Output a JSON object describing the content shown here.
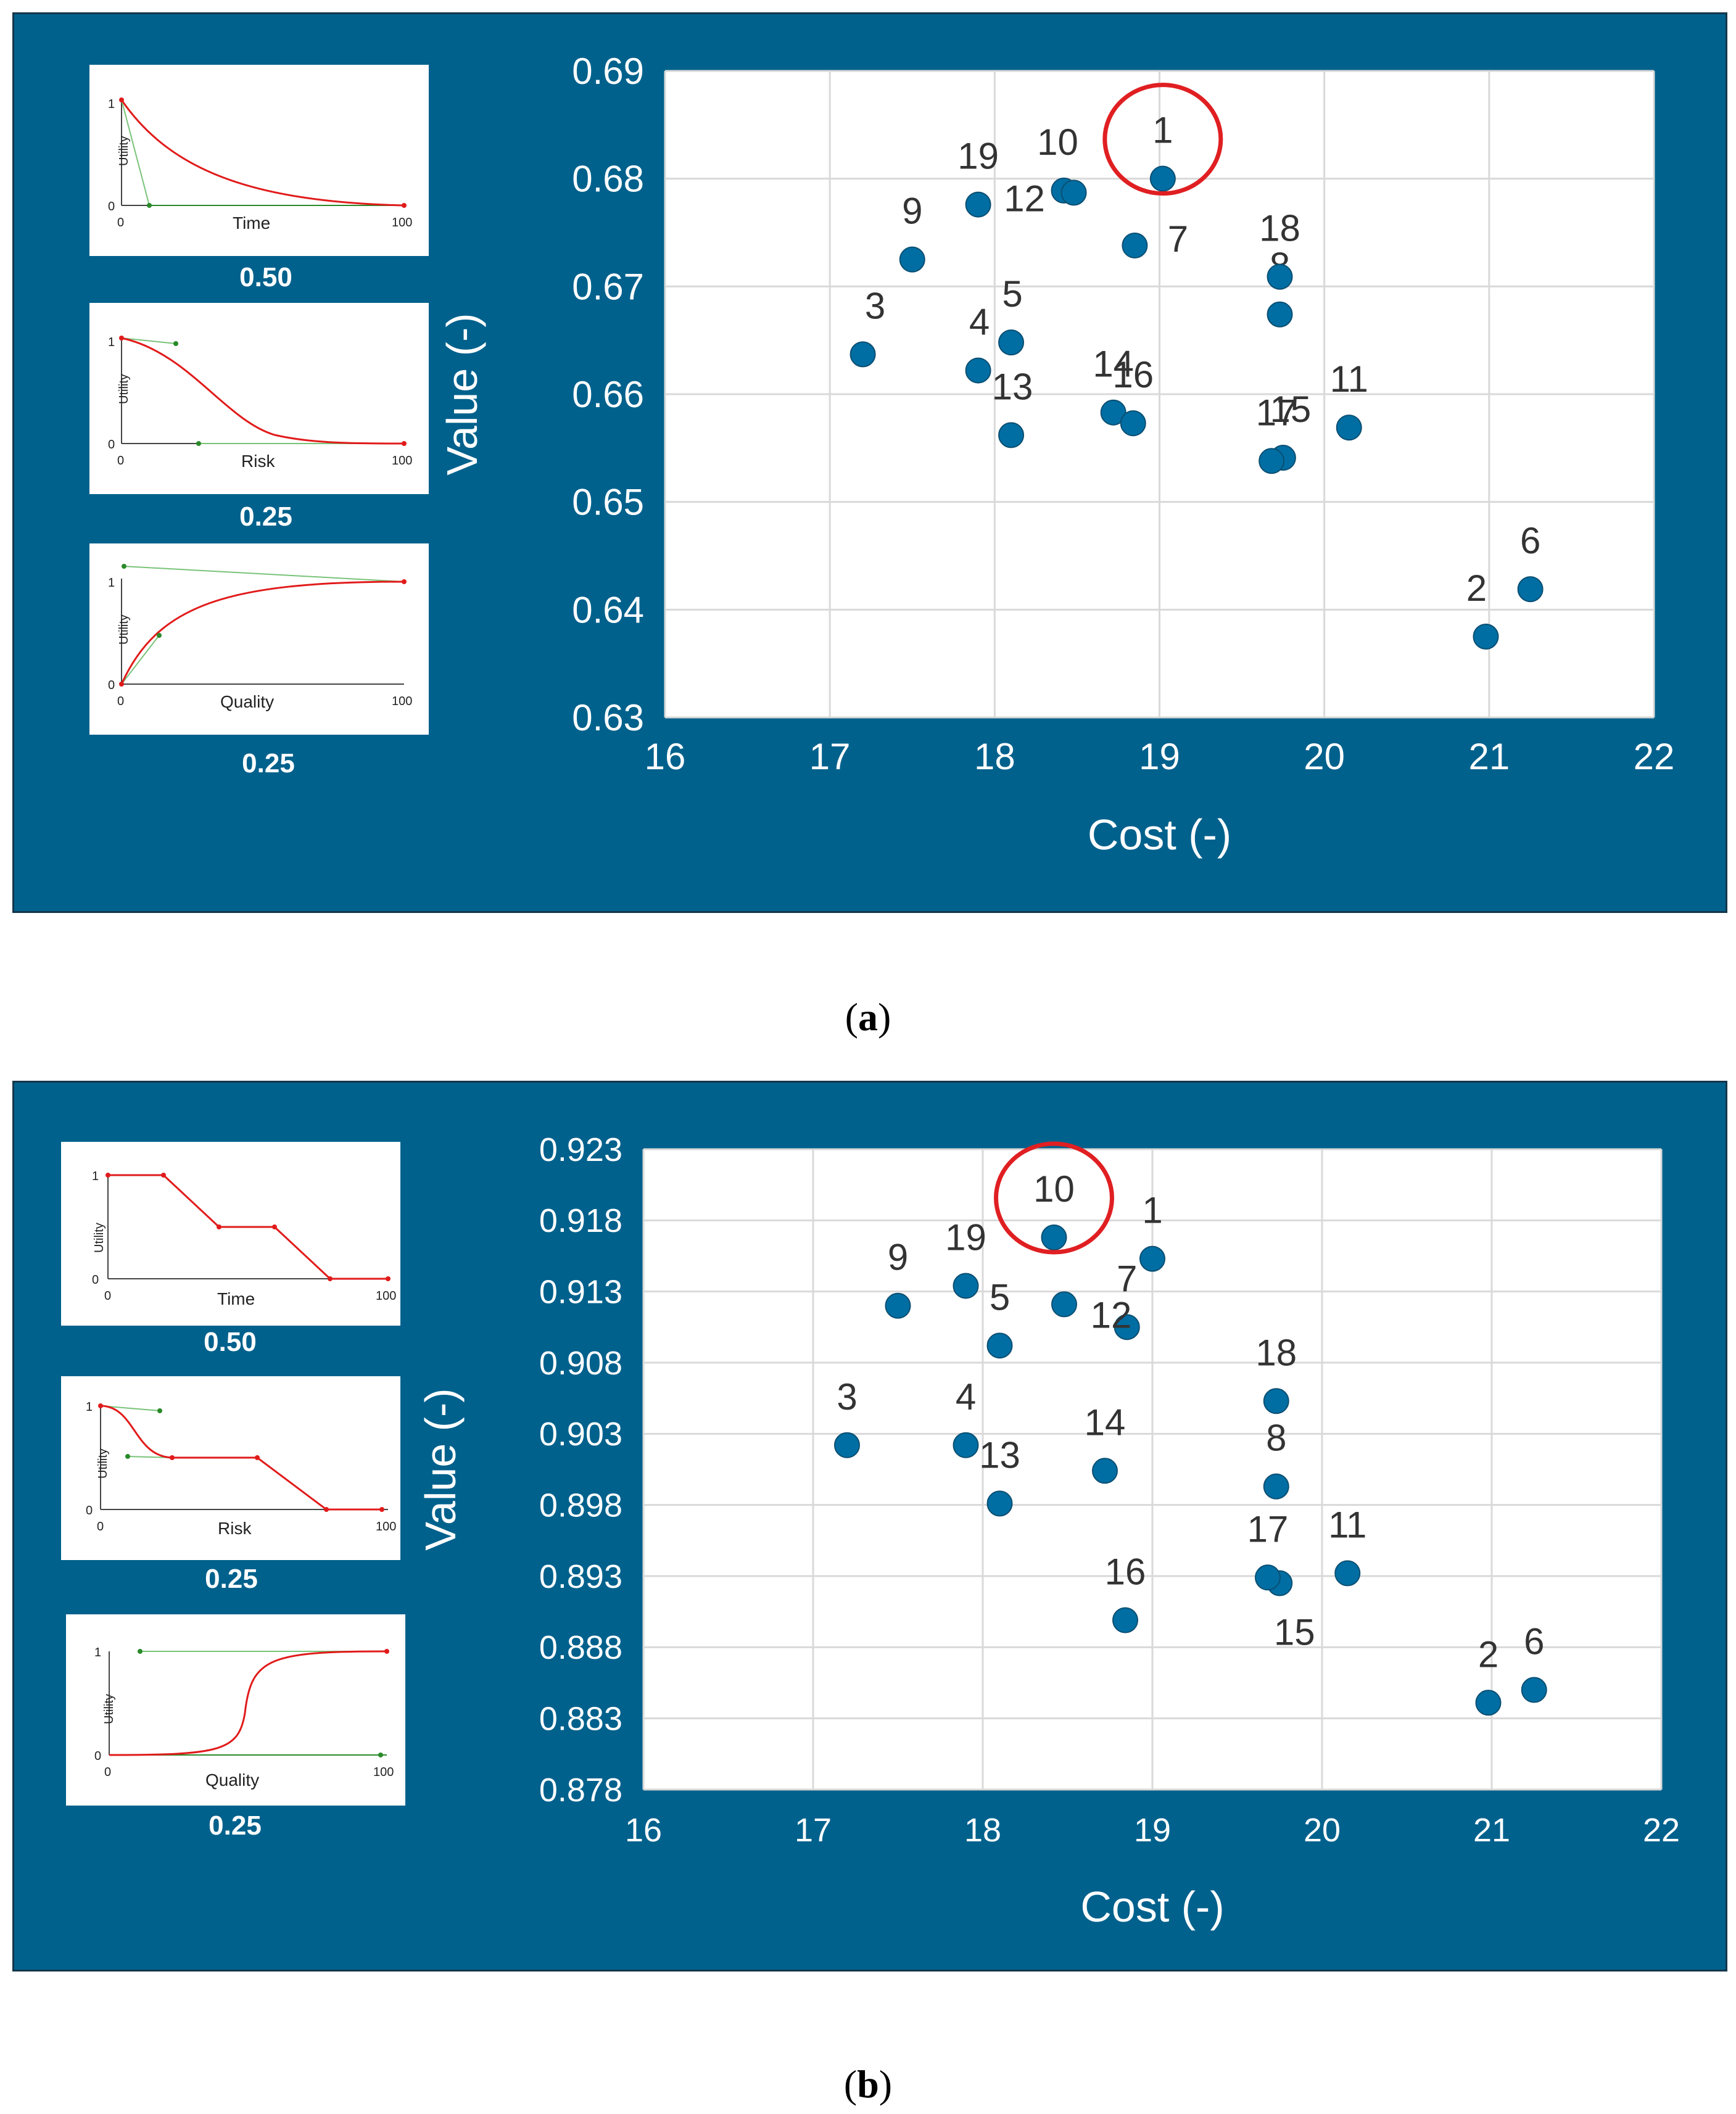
{
  "colors": {
    "panel": "#00618c",
    "marker": "#006ea3",
    "highlight": "#e01f22",
    "curve": "#e11b1b",
    "aux": "#79c379"
  },
  "panels": [
    {
      "caption_open": "(",
      "caption_letter": "a",
      "caption_close": ")",
      "utility_cards": [
        {
          "criterion": "Time",
          "weight": "0.50",
          "ylabel": "Utility",
          "y_ticks": [
            "1",
            "0"
          ],
          "x_ticks": [
            "0",
            "100"
          ]
        },
        {
          "criterion": "Risk",
          "weight": "0.25",
          "ylabel": "Utility",
          "y_ticks": [
            "1",
            "0"
          ],
          "x_ticks": [
            "0",
            "100"
          ]
        },
        {
          "criterion": "Quality",
          "weight": "0.25",
          "ylabel": "Utility",
          "y_ticks": [
            "1",
            "0"
          ],
          "x_ticks": [
            "0",
            "100"
          ]
        }
      ]
    },
    {
      "caption_open": "(",
      "caption_letter": "b",
      "caption_close": ")",
      "utility_cards": [
        {
          "criterion": "Time",
          "weight": "0.50",
          "ylabel": "Utility",
          "y_ticks": [
            "1",
            "0"
          ],
          "x_ticks": [
            "0",
            "100"
          ]
        },
        {
          "criterion": "Risk",
          "weight": "0.25",
          "ylabel": "Utility",
          "y_ticks": [
            "1",
            "0"
          ],
          "x_ticks": [
            "0",
            "100"
          ]
        },
        {
          "criterion": "Quality",
          "weight": "0.25",
          "ylabel": "Utility",
          "y_ticks": [
            "1",
            "0"
          ],
          "x_ticks": [
            "0",
            "100"
          ]
        }
      ]
    }
  ],
  "chart_data": [
    {
      "type": "scatter",
      "title": "",
      "xlabel": "Cost (-)",
      "ylabel": "Value (-)",
      "xlim": [
        16,
        22
      ],
      "ylim": [
        0.63,
        0.69
      ],
      "x_ticks": [
        "16",
        "17",
        "18",
        "19",
        "20",
        "21",
        "22"
      ],
      "y_ticks": [
        "0.63",
        "0.64",
        "0.65",
        "0.66",
        "0.67",
        "0.68",
        "0.69"
      ],
      "grid": true,
      "highlighted": "1",
      "points": [
        {
          "label": "1",
          "x": 19.02,
          "y": 0.68
        },
        {
          "label": "2",
          "x": 20.98,
          "y": 0.6375
        },
        {
          "label": "3",
          "x": 17.2,
          "y": 0.6637
        },
        {
          "label": "4",
          "x": 17.9,
          "y": 0.6622
        },
        {
          "label": "5",
          "x": 18.1,
          "y": 0.6648
        },
        {
          "label": "6",
          "x": 21.25,
          "y": 0.6419
        },
        {
          "label": "7",
          "x": 18.85,
          "y": 0.6738
        },
        {
          "label": "8",
          "x": 19.73,
          "y": 0.6674
        },
        {
          "label": "9",
          "x": 17.5,
          "y": 0.6725
        },
        {
          "label": "10",
          "x": 18.42,
          "y": 0.6789
        },
        {
          "label": "11",
          "x": 20.15,
          "y": 0.6569
        },
        {
          "label": "12",
          "x": 18.48,
          "y": 0.6787
        },
        {
          "label": "13",
          "x": 18.1,
          "y": 0.6562
        },
        {
          "label": "14",
          "x": 18.72,
          "y": 0.6583
        },
        {
          "label": "15",
          "x": 19.75,
          "y": 0.6541
        },
        {
          "label": "16",
          "x": 18.84,
          "y": 0.6573
        },
        {
          "label": "17",
          "x": 19.68,
          "y": 0.6538
        },
        {
          "label": "18",
          "x": 19.73,
          "y": 0.6709
        },
        {
          "label": "19",
          "x": 17.9,
          "y": 0.6776
        }
      ]
    },
    {
      "type": "scatter",
      "title": "",
      "xlabel": "Cost (-)",
      "ylabel": "Value (-)",
      "xlim": [
        16,
        22
      ],
      "ylim": [
        0.878,
        0.923
      ],
      "x_ticks": [
        "16",
        "17",
        "18",
        "19",
        "20",
        "21",
        "22"
      ],
      "y_ticks": [
        "0.878",
        "0.883",
        "0.888",
        "0.893",
        "0.898",
        "0.903",
        "0.908",
        "0.913",
        "0.918",
        "0.923"
      ],
      "grid": true,
      "highlighted": "10",
      "points": [
        {
          "label": "1",
          "x": 19.0,
          "y": 0.9153
        },
        {
          "label": "2",
          "x": 20.98,
          "y": 0.8841
        },
        {
          "label": "3",
          "x": 17.2,
          "y": 0.9022
        },
        {
          "label": "4",
          "x": 17.9,
          "y": 0.9022
        },
        {
          "label": "5",
          "x": 18.1,
          "y": 0.9092
        },
        {
          "label": "6",
          "x": 21.25,
          "y": 0.885
        },
        {
          "label": "7",
          "x": 18.85,
          "y": 0.9105
        },
        {
          "label": "8",
          "x": 19.73,
          "y": 0.8993
        },
        {
          "label": "9",
          "x": 17.5,
          "y": 0.912
        },
        {
          "label": "10",
          "x": 18.42,
          "y": 0.9168
        },
        {
          "label": "11",
          "x": 20.15,
          "y": 0.8932
        },
        {
          "label": "12",
          "x": 18.48,
          "y": 0.9121
        },
        {
          "label": "13",
          "x": 18.1,
          "y": 0.8981
        },
        {
          "label": "14",
          "x": 18.72,
          "y": 0.9004
        },
        {
          "label": "15",
          "x": 19.75,
          "y": 0.8925
        },
        {
          "label": "16",
          "x": 18.84,
          "y": 0.8899
        },
        {
          "label": "17",
          "x": 19.68,
          "y": 0.8929
        },
        {
          "label": "18",
          "x": 19.73,
          "y": 0.9053
        },
        {
          "label": "19",
          "x": 17.9,
          "y": 0.9134
        }
      ]
    }
  ]
}
